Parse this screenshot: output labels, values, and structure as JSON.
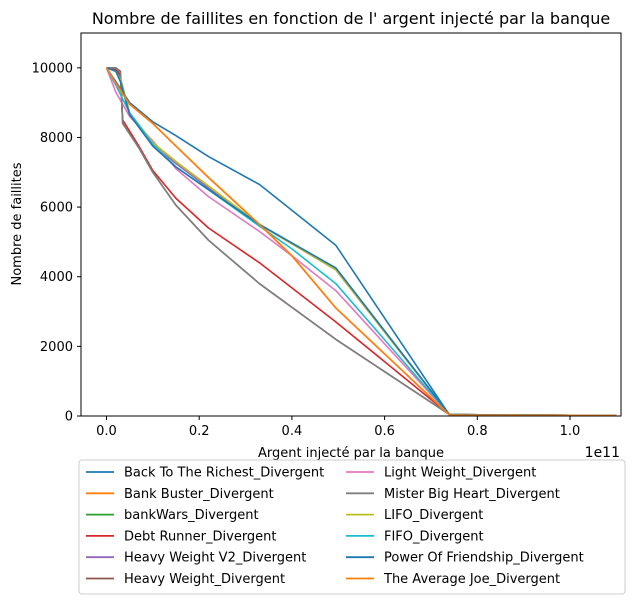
{
  "chart_data": {
    "type": "line",
    "title": "Nombre de faillites en fonction de l' argent injecté par la banque",
    "xlabel": "Argent injecté par la banque",
    "ylabel": "Nombre de faillites",
    "x_offset_label": "1e11",
    "xlim": [
      -0.055,
      1.11
    ],
    "ylim": [
      0,
      11000
    ],
    "x_ticks": [
      0.0,
      0.2,
      0.4,
      0.6,
      0.8,
      1.0
    ],
    "x_tick_labels": [
      "0.0",
      "0.2",
      "0.4",
      "0.6",
      "0.8",
      "1.0"
    ],
    "y_ticks": [
      0,
      2000,
      4000,
      6000,
      8000,
      10000
    ],
    "y_tick_labels": [
      "0",
      "2000",
      "4000",
      "6000",
      "8000",
      "10000"
    ],
    "grid": false,
    "legend_position": "below",
    "legend_columns": 2,
    "series": [
      {
        "name": "Back To The Richest_Divergent",
        "color": "#1f77b4",
        "x": [
          0,
          0.02,
          0.05,
          0.1,
          0.15,
          0.22,
          0.33,
          0.495,
          0.74,
          0.9,
          1.1
        ],
        "y": [
          10000,
          9600,
          9000,
          8450,
          8050,
          7450,
          6650,
          4900,
          30,
          20,
          15
        ]
      },
      {
        "name": "Bank Buster_Divergent",
        "color": "#ff7f0e",
        "x": [
          0,
          0.02,
          0.05,
          0.1,
          0.15,
          0.22,
          0.33,
          0.4,
          0.495,
          0.74,
          0.9,
          1.1
        ],
        "y": [
          10000,
          9550,
          8950,
          8400,
          7750,
          6850,
          5500,
          4600,
          3100,
          30,
          20,
          15
        ]
      },
      {
        "name": "bankWars_Divergent",
        "color": "#2ca02c",
        "x": [
          0,
          0.02,
          0.03,
          0.05,
          0.1,
          0.15,
          0.22,
          0.33,
          0.495,
          0.74,
          0.9,
          1.1
        ],
        "y": [
          10000,
          9950,
          9700,
          8700,
          7850,
          7300,
          6600,
          5500,
          4200,
          40,
          25,
          15
        ]
      },
      {
        "name": "Debt Runner_Divergent",
        "color": "#d62728",
        "x": [
          0,
          0.02,
          0.03,
          0.035,
          0.07,
          0.1,
          0.15,
          0.22,
          0.33,
          0.495,
          0.74,
          0.9,
          1.1
        ],
        "y": [
          10000,
          9950,
          9800,
          8500,
          7750,
          7050,
          6250,
          5400,
          4400,
          2700,
          40,
          25,
          15
        ]
      },
      {
        "name": "Heavy Weight V2_Divergent",
        "color": "#9467bd",
        "x": [
          0,
          0.02,
          0.03,
          0.05,
          0.1,
          0.15,
          0.22,
          0.33,
          0.495,
          0.74,
          0.9,
          1.1
        ],
        "y": [
          10000,
          9900,
          9650,
          8650,
          7800,
          7250,
          6550,
          5500,
          4200,
          40,
          25,
          15
        ]
      },
      {
        "name": "Heavy Weight_Divergent",
        "color": "#8c564b",
        "x": [
          0,
          0.02,
          0.03,
          0.035,
          0.07,
          0.1,
          0.15,
          0.22,
          0.33,
          0.495,
          0.74,
          0.9,
          1.1
        ],
        "y": [
          10000,
          10000,
          9900,
          8400,
          7700,
          7000,
          6050,
          5050,
          3800,
          2200,
          40,
          25,
          15
        ]
      },
      {
        "name": "Light Weight_Divergent",
        "color": "#e377c2",
        "x": [
          0,
          0.02,
          0.05,
          0.1,
          0.15,
          0.22,
          0.33,
          0.4,
          0.495,
          0.74,
          0.9,
          1.1
        ],
        "y": [
          10000,
          9300,
          8600,
          7900,
          7100,
          6300,
          5300,
          4600,
          3600,
          40,
          25,
          15
        ]
      },
      {
        "name": "Mister Big Heart_Divergent",
        "color": "#7f7f7f",
        "x": [
          0,
          0.02,
          0.03,
          0.035,
          0.07,
          0.1,
          0.15,
          0.22,
          0.33,
          0.495,
          0.74,
          0.9,
          1.1
        ],
        "y": [
          10000,
          10000,
          9850,
          8400,
          7700,
          7000,
          6050,
          5050,
          3800,
          2200,
          40,
          25,
          15
        ]
      },
      {
        "name": "LIFO_Divergent",
        "color": "#bcbd22",
        "x": [
          0,
          0.02,
          0.03,
          0.05,
          0.1,
          0.15,
          0.22,
          0.33,
          0.495,
          0.74,
          0.9,
          1.1
        ],
        "y": [
          10000,
          9900,
          9650,
          8700,
          7850,
          7300,
          6600,
          5500,
          4200,
          40,
          25,
          15
        ]
      },
      {
        "name": "FIFO_Divergent",
        "color": "#17becf",
        "x": [
          0,
          0.02,
          0.05,
          0.1,
          0.15,
          0.22,
          0.33,
          0.4,
          0.495,
          0.74,
          0.9,
          1.1
        ],
        "y": [
          10000,
          9500,
          8700,
          7800,
          7150,
          6500,
          5450,
          4800,
          3800,
          40,
          25,
          15
        ]
      },
      {
        "name": "Power Of Friendship_Divergent",
        "color": "#1f77b4",
        "x": [
          0,
          0.02,
          0.03,
          0.05,
          0.1,
          0.15,
          0.22,
          0.33,
          0.495,
          0.74,
          0.9,
          1.1
        ],
        "y": [
          10000,
          9900,
          9600,
          8650,
          7750,
          7150,
          6500,
          5500,
          4250,
          40,
          25,
          15
        ]
      },
      {
        "name": "The Average Joe_Divergent",
        "color": "#ff7f0e",
        "x": [
          0,
          0.02,
          0.05,
          0.1,
          0.15,
          0.22,
          0.33,
          0.4,
          0.495,
          0.74,
          0.9,
          1.1
        ],
        "y": [
          10000,
          9550,
          8950,
          8400,
          7750,
          6850,
          5500,
          4600,
          3100,
          30,
          20,
          15
        ]
      }
    ]
  }
}
